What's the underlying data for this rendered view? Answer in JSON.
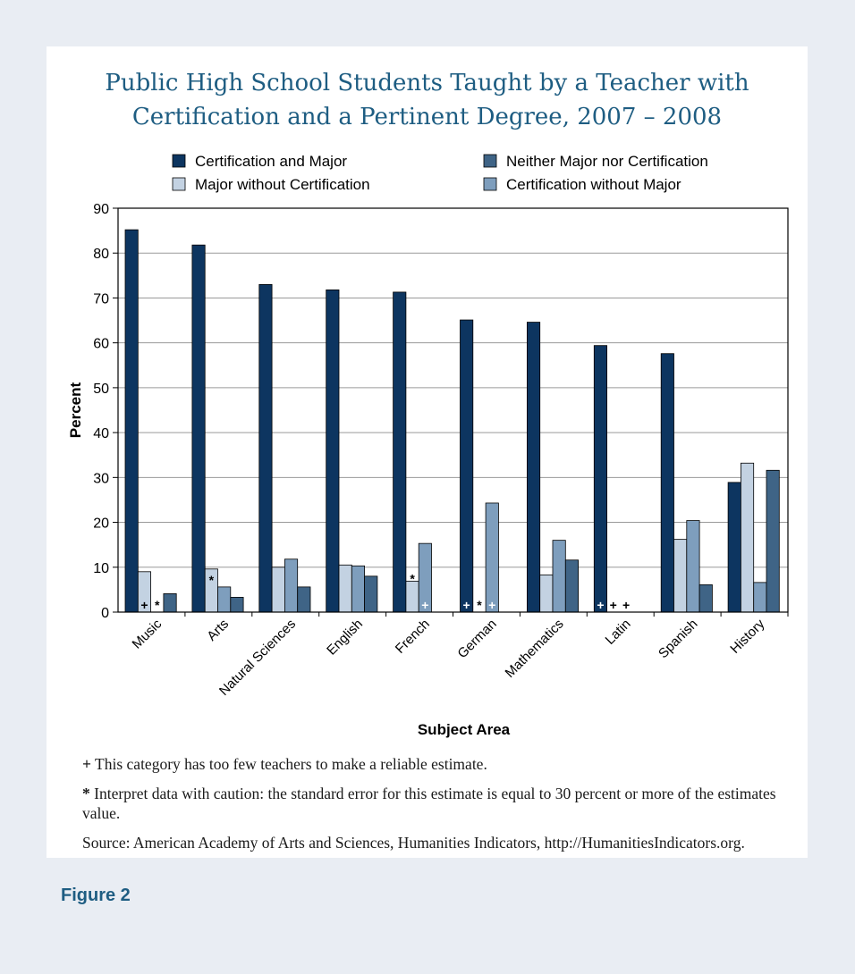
{
  "page": {
    "figure_label": "Figure 2",
    "footnotes": [
      {
        "symbol": "+",
        "text": "This category has too few teachers to make a reliable estimate."
      },
      {
        "symbol": "*",
        "text": "Interpret data with caution: the standard error for this estimate is equal to 30 percent or more of the estimates value."
      },
      {
        "symbol": "",
        "text": "Source: American Academy of Arts and Sciences, Humanities Indicators, http://HumanitiesIndicators.org."
      }
    ]
  },
  "chart_data": {
    "type": "bar",
    "title_lines": [
      "Public High School Students Taught by a Teacher with",
      "Certification and a Pertinent Degree, 2007 – 2008"
    ],
    "xlabel": "Subject Area",
    "ylabel": "Percent",
    "ylim": [
      0,
      90
    ],
    "yticks": [
      0,
      10,
      20,
      30,
      40,
      50,
      60,
      70,
      80,
      90
    ],
    "grid": true,
    "legend_position": "top",
    "categories": [
      "Music",
      "Arts",
      "Natural Sciences",
      "English",
      "French",
      "German",
      "Mathematics",
      "Latin",
      "Spanish",
      "History"
    ],
    "series": [
      {
        "name": "Certification and Major",
        "color": "#0d3560",
        "values": [
          85.2,
          81.8,
          73.0,
          71.8,
          71.3,
          65.1,
          64.6,
          59.4,
          57.6,
          28.9
        ],
        "marks": [
          "",
          "",
          "",
          "",
          "",
          "+",
          "",
          "+",
          "",
          ""
        ]
      },
      {
        "name": "Major without Certification",
        "color": "#c3d2e2",
        "values": [
          9.0,
          9.6,
          10.0,
          10.5,
          6.9,
          null,
          8.3,
          null,
          16.2,
          33.2
        ],
        "marks": [
          "+",
          "*",
          "",
          "",
          "*",
          "*",
          "",
          "+",
          "",
          ""
        ]
      },
      {
        "name": "Certification without Major",
        "color": "#7e9ebd",
        "values": [
          null,
          5.6,
          11.8,
          10.3,
          15.3,
          24.3,
          16.0,
          null,
          20.4,
          6.6
        ],
        "marks": [
          "*",
          "",
          "",
          "",
          "+",
          "+",
          "",
          "+",
          "",
          ""
        ]
      },
      {
        "name": "Neither Major nor Certification",
        "color": "#3f6486",
        "values": [
          4.1,
          3.3,
          5.6,
          8.0,
          null,
          null,
          11.6,
          null,
          6.1,
          31.6
        ],
        "marks": [
          "",
          "",
          "",
          "",
          "",
          "",
          "",
          "",
          "",
          ""
        ]
      }
    ],
    "legend_order": [
      "Certification and Major",
      "Neither Major nor Certification",
      "Major without Certification",
      "Certification without Major"
    ]
  }
}
